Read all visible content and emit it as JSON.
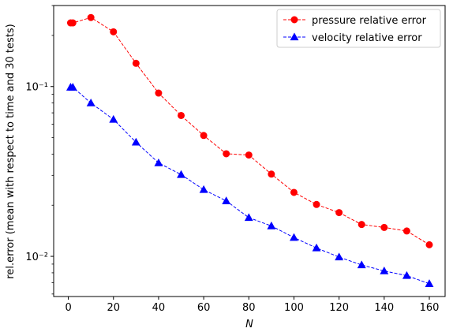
{
  "chart_data": {
    "type": "line",
    "xlabel": "N",
    "ylabel": "rel.error (mean with respect to time and 30 tests)",
    "xlim": [
      -6.5,
      167
    ],
    "ylim": [
      0.0058,
      0.3
    ],
    "yscale": "log",
    "x_ticks": [
      0,
      20,
      40,
      60,
      80,
      100,
      120,
      140,
      160
    ],
    "y_major_ticks": [
      0.01,
      0.1
    ],
    "y_major_tick_labels": [
      "10⁻²",
      "10⁻¹"
    ],
    "y_minor_ticks": [
      0.006,
      0.007,
      0.008,
      0.009,
      0.02,
      0.03,
      0.04,
      0.05,
      0.06,
      0.07,
      0.08,
      0.09,
      0.2,
      0.3
    ],
    "grid": false,
    "legend_position": "top-right",
    "series": [
      {
        "name": "pressure relative error",
        "color": "#ff0000",
        "marker": "circle",
        "linestyle": "dashed",
        "x": [
          1,
          2,
          10,
          20,
          30,
          40,
          50,
          60,
          70,
          80,
          90,
          100,
          110,
          120,
          130,
          140,
          150,
          160
        ],
        "y": [
          0.237,
          0.237,
          0.255,
          0.21,
          0.137,
          0.0915,
          0.0675,
          0.0515,
          0.0402,
          0.0395,
          0.0305,
          0.0238,
          0.0202,
          0.0181,
          0.0154,
          0.0148,
          0.0141,
          0.0117
        ]
      },
      {
        "name": "velocity relative error",
        "color": "#0000ff",
        "marker": "triangle",
        "linestyle": "dashed",
        "x": [
          1,
          2,
          10,
          20,
          30,
          40,
          50,
          60,
          70,
          80,
          90,
          100,
          110,
          120,
          130,
          140,
          150,
          160
        ],
        "y": [
          0.099,
          0.099,
          0.08,
          0.064,
          0.047,
          0.0355,
          0.0303,
          0.0247,
          0.0212,
          0.0169,
          0.0151,
          0.0129,
          0.0112,
          0.0099,
          0.0089,
          0.0082,
          0.0077,
          0.0069
        ]
      }
    ]
  }
}
